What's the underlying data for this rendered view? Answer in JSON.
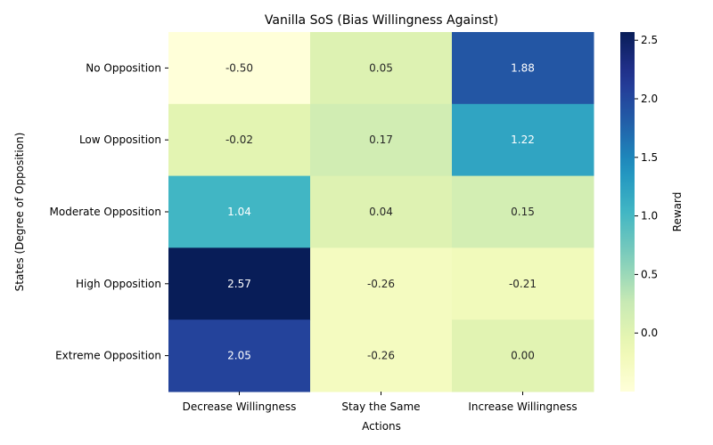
{
  "chart_data": {
    "type": "heatmap",
    "title": "Vanilla SoS (Bias Willingness Against)",
    "xlabel": "Actions",
    "ylabel": "States (Degree of Opposition)",
    "x_categories": [
      "Decrease Willingness",
      "Stay the Same",
      "Increase Willingness"
    ],
    "y_categories": [
      "No Opposition",
      "Low Opposition",
      "Moderate Opposition",
      "High Opposition",
      "Extreme Opposition"
    ],
    "values": [
      [
        -0.5,
        0.05,
        1.88
      ],
      [
        -0.02,
        0.17,
        1.22
      ],
      [
        1.04,
        0.04,
        0.15
      ],
      [
        2.57,
        -0.26,
        -0.21
      ],
      [
        2.05,
        -0.26,
        0.0
      ]
    ],
    "colorbar": {
      "label": "Reward",
      "range": [
        -0.5,
        2.57
      ],
      "ticks": [
        0.0,
        0.5,
        1.0,
        1.5,
        2.0,
        2.5
      ],
      "colormap": "YlGnBu"
    },
    "annotation_format": "%.2f"
  }
}
